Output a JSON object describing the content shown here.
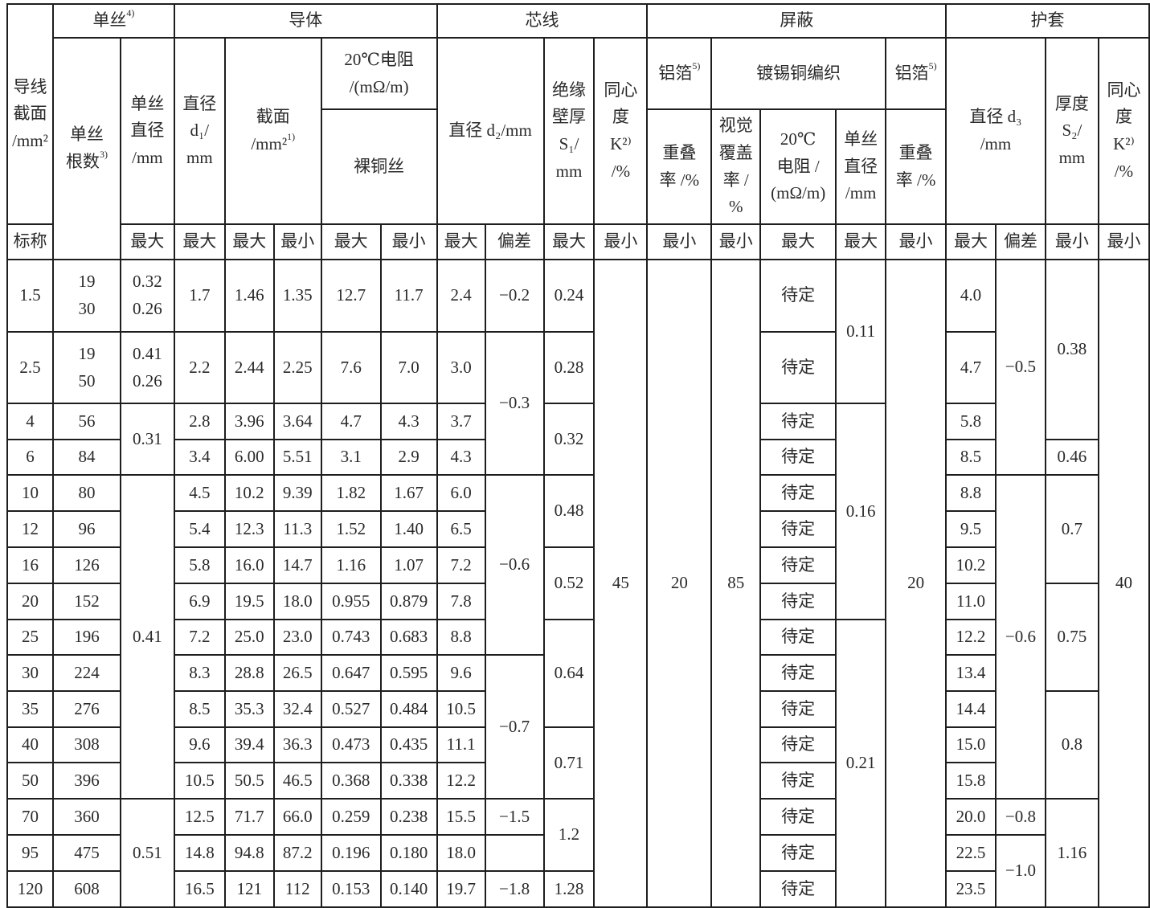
{
  "column_widths_note": "",
  "header": [
    [
      {
        "t": "导线\n截面\n/mm²",
        "rs": 3
      },
      {
        "t": "单丝",
        "sup": "4)",
        "cs": 2
      },
      {
        "t": "导体",
        "cs": 5
      },
      {
        "t": "芯线",
        "cs": 4
      },
      {
        "t": "屏蔽",
        "cs": 5
      },
      {
        "t": "护套",
        "cs": 4
      }
    ],
    [
      {
        "t": "单丝\n根数",
        "sup": "3)",
        "rs": 3
      },
      {
        "t": "单丝\n直径\n/mm",
        "rs": 2
      },
      {
        "t": "直径\nd₁/\nmm",
        "rs": 2
      },
      {
        "t": "截面\n/mm²",
        "sup": "1)",
        "cs": 2,
        "rs": 2
      },
      {
        "t": "20℃电阻\n/(mΩ/m)",
        "cs": 2
      },
      {
        "t": "直径 d₂/mm",
        "cs": 2,
        "rs": 2
      },
      {
        "t": "绝缘\n壁厚\nS₁/\nmm",
        "rs": 2
      },
      {
        "t": "同心\n度\nK²⁾\n/%",
        "rs": 2
      },
      {
        "t": "铝箔",
        "sup": "5)"
      },
      {
        "t": "镀锡铜编织",
        "cs": 3
      },
      {
        "t": "铝箔",
        "sup": "5)"
      },
      {
        "t": "直径 d₃\n/mm",
        "cs": 2,
        "rs": 2
      },
      {
        "t": "厚度\nS₂/\nmm",
        "rs": 2
      },
      {
        "t": "同心\n度\nK²⁾\n/%",
        "rs": 2
      }
    ],
    [
      {
        "t": "裸铜丝",
        "cs": 2
      },
      {
        "t": "重叠\n率 /%"
      },
      {
        "t": "视觉\n覆盖\n率 /\n%"
      },
      {
        "t": "20℃\n电阻 /\n(mΩ/m)"
      },
      {
        "t": "单丝\n直径\n/mm"
      },
      {
        "t": "重叠\n率 /%"
      }
    ],
    [
      {
        "t": "标称"
      },
      {
        "t": "最大"
      },
      {
        "t": "最大"
      },
      {
        "t": "最大"
      },
      {
        "t": "最小"
      },
      {
        "t": "最大"
      },
      {
        "t": "最小"
      },
      {
        "t": "最大"
      },
      {
        "t": "偏差"
      },
      {
        "t": "最大"
      },
      {
        "t": "最小"
      },
      {
        "t": "最小"
      },
      {
        "t": "最小"
      },
      {
        "t": "最大"
      },
      {
        "t": "最大"
      },
      {
        "t": "最小"
      },
      {
        "t": "最大"
      },
      {
        "t": "偏差"
      },
      {
        "t": "最小"
      },
      {
        "t": "最小"
      }
    ]
  ],
  "rows": [
    [
      "1.5",
      "19\n30",
      "0.32\n0.26",
      "1.7",
      "1.46",
      "1.35",
      "12.7",
      "11.7",
      "2.4",
      "−0.2",
      "0.24",
      {
        "t": "45",
        "rs": 16
      },
      {
        "t": "20",
        "rs": 16
      },
      {
        "t": "85",
        "rs": 16
      },
      "待定",
      {
        "t": "0.11",
        "rs": 2
      },
      {
        "t": "20",
        "rs": 16
      },
      "4.0",
      {
        "t": "−0.5",
        "rs": 4
      },
      {
        "t": "0.38",
        "rs": 3
      },
      {
        "t": "40",
        "rs": 16
      }
    ],
    [
      "2.5",
      "19\n50",
      "0.41\n0.26",
      "2.2",
      "2.44",
      "2.25",
      "7.6",
      "7.0",
      "3.0",
      {
        "t": "−0.3",
        "rs": 3
      },
      "0.28",
      "待定",
      "4.7"
    ],
    [
      "4",
      "56",
      {
        "t": "0.31",
        "rs": 2
      },
      "2.8",
      "3.96",
      "3.64",
      "4.7",
      "4.3",
      "3.7",
      {
        "t": "0.32",
        "rs": 2
      },
      "待定",
      {
        "t": "0.16",
        "rs": 6
      },
      "5.8"
    ],
    [
      "6",
      "84",
      "3.4",
      "6.00",
      "5.51",
      "3.1",
      "2.9",
      "4.3",
      "待定",
      "8.5",
      "0.46"
    ],
    [
      "10",
      "80",
      {
        "t": "0.41",
        "rs": 9
      },
      "4.5",
      "10.2",
      "9.39",
      "1.82",
      "1.67",
      "6.0",
      {
        "t": "−0.6",
        "rs": 5
      },
      {
        "t": "0.48",
        "rs": 2
      },
      "待定",
      "8.8",
      {
        "t": "−0.6",
        "rs": 9
      },
      {
        "t": "0.7",
        "rs": 3
      }
    ],
    [
      "12",
      "96",
      "5.4",
      "12.3",
      "11.3",
      "1.52",
      "1.40",
      "6.5",
      "待定",
      "9.5"
    ],
    [
      "16",
      "126",
      "5.8",
      "16.0",
      "14.7",
      "1.16",
      "1.07",
      "7.2",
      {
        "t": "0.52",
        "rs": 2
      },
      "待定",
      "10.2"
    ],
    [
      "20",
      "152",
      "6.9",
      "19.5",
      "18.0",
      "0.955",
      "0.879",
      "7.8",
      "待定",
      "11.0",
      {
        "t": "0.75",
        "rs": 3
      }
    ],
    [
      "25",
      "196",
      "7.2",
      "25.0",
      "23.0",
      "0.743",
      "0.683",
      "8.8",
      {
        "t": "0.64",
        "rs": 3
      },
      "待定",
      {
        "t": "0.21",
        "rs": 8
      },
      "12.2"
    ],
    [
      "30",
      "224",
      "8.3",
      "28.8",
      "26.5",
      "0.647",
      "0.595",
      "9.6",
      {
        "t": "−0.7",
        "rs": 4
      },
      "待定",
      "13.4"
    ],
    [
      "35",
      "276",
      "8.5",
      "35.3",
      "32.4",
      "0.527",
      "0.484",
      "10.5",
      "待定",
      "14.4",
      {
        "t": "0.8",
        "rs": 3
      }
    ],
    [
      "40",
      "308",
      "9.6",
      "39.4",
      "36.3",
      "0.473",
      "0.435",
      "11.1",
      {
        "t": "0.71",
        "rs": 2
      },
      "待定",
      "15.0"
    ],
    [
      "50",
      "396",
      "10.5",
      "50.5",
      "46.5",
      "0.368",
      "0.338",
      "12.2",
      "待定",
      "15.8"
    ],
    [
      "70",
      "360",
      {
        "t": "0.51",
        "rs": 3
      },
      "12.5",
      "71.7",
      "66.0",
      "0.259",
      "0.238",
      "15.5",
      "−1.5",
      {
        "t": "1.2",
        "rs": 2
      },
      "待定",
      "20.0",
      "−0.8",
      {
        "t": "1.16",
        "rs": 3
      }
    ],
    [
      "95",
      "475",
      "14.8",
      "94.8",
      "87.2",
      "0.196",
      "0.180",
      "18.0",
      "",
      "待定",
      "22.5",
      {
        "t": "−1.0",
        "rs": 2
      }
    ],
    [
      "120",
      "608",
      "16.5",
      "121",
      "112",
      "0.153",
      "0.140",
      "19.7",
      "−1.8",
      "1.28",
      "待定",
      "23.5"
    ]
  ]
}
